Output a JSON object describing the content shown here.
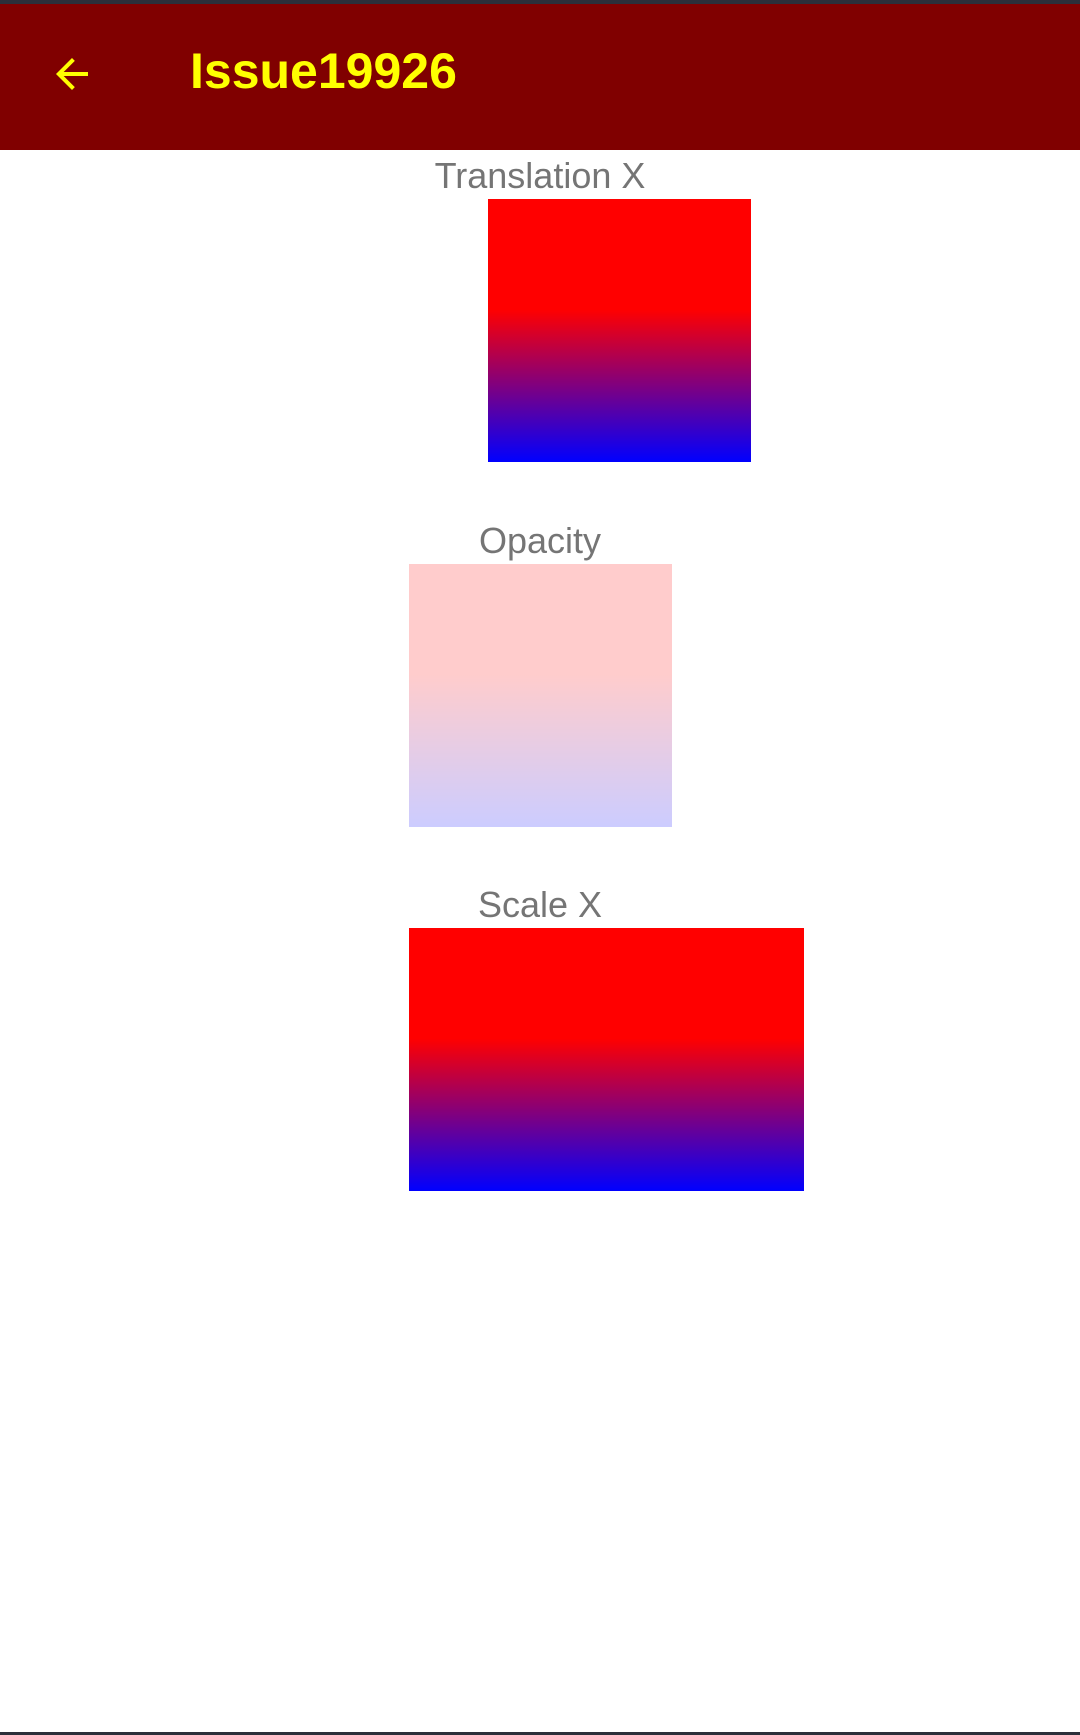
{
  "toolbar": {
    "title": "Issue19926",
    "background_color": "#800000",
    "foreground_color": "#FFFF00",
    "back_icon": "arrow-left-icon"
  },
  "sections": [
    {
      "label": "Translation X",
      "gradient": [
        "#FF0000",
        "#0000FF"
      ],
      "opacity": 1.0,
      "transform": "translation-x"
    },
    {
      "label": "Opacity",
      "gradient": [
        "#FF0000",
        "#0000FF"
      ],
      "opacity": 0.2,
      "transform": "opacity"
    },
    {
      "label": "Scale X",
      "gradient": [
        "#FF0000",
        "#0000FF"
      ],
      "opacity": 1.0,
      "transform": "scale-x"
    }
  ]
}
